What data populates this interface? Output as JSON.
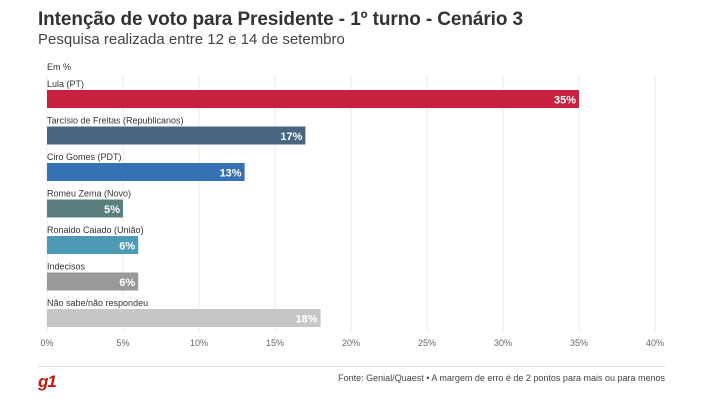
{
  "header": {
    "title": "Intenção de voto para Presidente - 1º turno - Cenário 3",
    "subtitle": "Pesquisa realizada entre 12 e 14 de setembro"
  },
  "chart_data": {
    "type": "bar",
    "orientation": "horizontal",
    "title": "Intenção de voto para Presidente - 1º turno - Cenário 3",
    "subtitle": "Pesquisa realizada entre 12 e 14 de setembro",
    "unit_label": "Em %",
    "categories": [
      "Lula (PT)",
      "Tarcísio de Freitas (Republicanos)",
      "Ciro Gomes (PDT)",
      "Romeu Zema (Novo)",
      "Ronaldo Caiado (União)",
      "Indecisos",
      "Não sabe/não respondeu"
    ],
    "values": [
      35,
      17,
      13,
      5,
      6,
      6,
      18
    ],
    "value_labels": [
      "35%",
      "17%",
      "13%",
      "5%",
      "6%",
      "6%",
      "18%"
    ],
    "colors": [
      "#c8203f",
      "#4a6580",
      "#3672b3",
      "#5b7f7e",
      "#4d9ab5",
      "#999999",
      "#c6c6c6"
    ],
    "xlim": [
      0,
      40
    ],
    "xticks": [
      0,
      5,
      10,
      15,
      20,
      25,
      30,
      35,
      40
    ],
    "xtick_labels": [
      "0%",
      "5%",
      "10%",
      "15%",
      "20%",
      "25%",
      "30%",
      "35%",
      "40%"
    ],
    "grid": true
  },
  "footer": {
    "logo": "g1",
    "source": "Fonte: Genial/Quaest • A margem de erro é de 2 pontos para mais ou para menos"
  }
}
